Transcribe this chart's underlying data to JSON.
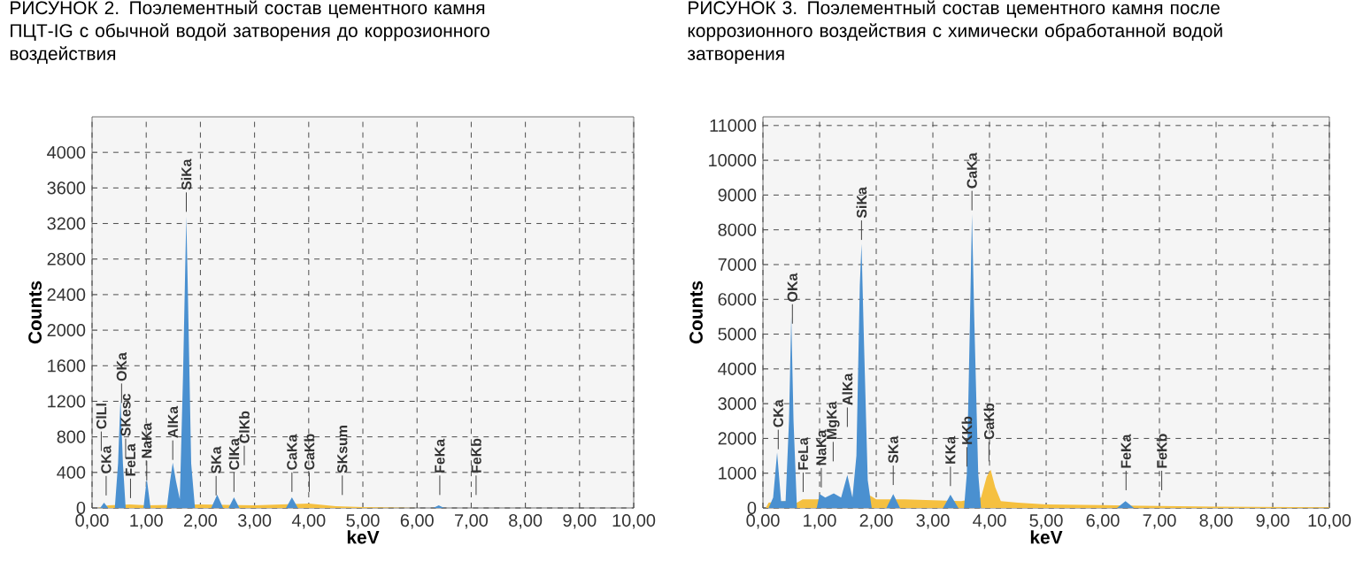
{
  "chart_data": [
    {
      "type": "area",
      "title": "РИСУНОК 2. Поэлементный состав цементного камня ПЦТ-IG с обычной водой затворения до коррозионного воздействия",
      "xlabel": "keV",
      "ylabel": "Counts",
      "xlim": [
        0,
        10
      ],
      "ylim": [
        0,
        4400
      ],
      "xticks": [
        {
          "value": 0,
          "label": "0,00"
        },
        {
          "value": 1,
          "label": "1,00"
        },
        {
          "value": 2,
          "label": "2,00"
        },
        {
          "value": 3,
          "label": "3,00"
        },
        {
          "value": 4,
          "label": "4,00"
        },
        {
          "value": 5,
          "label": "5,00"
        },
        {
          "value": 6,
          "label": "6,00"
        },
        {
          "value": 7,
          "label": "7,00"
        },
        {
          "value": 8,
          "label": "8,00"
        },
        {
          "value": 9,
          "label": "9,00"
        },
        {
          "value": 10,
          "label": "10,00"
        }
      ],
      "yticks": [
        0,
        400,
        800,
        1200,
        1600,
        2000,
        2400,
        2800,
        3200,
        3600,
        4000
      ],
      "grid": true,
      "series": [
        {
          "color": "#f5c040",
          "x": [
            0.1,
            0.3,
            0.7,
            1.0,
            2.0,
            3.0,
            4.0,
            4.5,
            5.0,
            6.0,
            10.0
          ],
          "values": [
            0,
            30,
            40,
            30,
            40,
            30,
            50,
            20,
            10,
            0,
            0
          ]
        },
        {
          "color": "#4a90d0",
          "x": [
            0.0,
            0.15,
            0.22,
            0.3,
            0.42,
            0.48,
            0.525,
            0.57,
            0.62,
            0.95,
            1.01,
            1.08,
            1.38,
            1.44,
            1.49,
            1.55,
            1.62,
            1.68,
            1.72,
            1.74,
            1.77,
            1.83,
            1.9,
            2.2,
            2.31,
            2.42,
            2.52,
            2.62,
            2.72,
            3.58,
            3.69,
            3.8,
            6.3,
            6.4,
            6.5,
            10.0
          ],
          "values": [
            0,
            0,
            60,
            0,
            0,
            500,
            1230,
            500,
            0,
            0,
            330,
            0,
            0,
            300,
            510,
            300,
            100,
            1500,
            2700,
            3280,
            2400,
            500,
            0,
            0,
            150,
            0,
            0,
            120,
            0,
            0,
            120,
            0,
            0,
            30,
            0,
            0
          ]
        }
      ],
      "annotations": [
        "ClLl",
        "CKa",
        "OKa",
        "SKesc",
        "FeLa",
        "NaKa",
        "AlKa",
        "SiKa",
        "SKa",
        "ClKa",
        "ClKb",
        "CaKa",
        "CaKb",
        "SKsum",
        "FeKa",
        "FeKb"
      ]
    },
    {
      "type": "area",
      "title": "РИСУНОК 3. Поэлементный состав цементного камня после коррозионного воздействия с химически обработанной водой затворения",
      "xlabel": "keV",
      "ylabel": "Counts",
      "xlim": [
        0,
        10
      ],
      "ylim": [
        0,
        11250
      ],
      "xticks": [
        {
          "value": 0,
          "label": "0,00"
        },
        {
          "value": 1,
          "label": "1,00"
        },
        {
          "value": 2,
          "label": "2,00"
        },
        {
          "value": 3,
          "label": "3,00"
        },
        {
          "value": 4,
          "label": "4,00"
        },
        {
          "value": 5,
          "label": "5,00"
        },
        {
          "value": 6,
          "label": "6,00"
        },
        {
          "value": 7,
          "label": "7,00"
        },
        {
          "value": 8,
          "label": "8,00"
        },
        {
          "value": 9,
          "label": "9,00"
        },
        {
          "value": 10,
          "label": "10,00"
        }
      ],
      "yticks": [
        0,
        1000,
        2000,
        3000,
        4000,
        5000,
        6000,
        7000,
        8000,
        9000,
        10000,
        11000
      ],
      "grid": true,
      "series": [
        {
          "color": "#f5c040",
          "x": [
            0.05,
            0.1,
            0.4,
            0.6,
            0.7,
            0.95,
            1.9,
            2.0,
            2.5,
            3.5,
            3.85,
            3.95,
            4.02,
            4.1,
            4.2,
            4.5,
            5.0,
            6.0,
            7.0,
            8.0,
            9.0,
            10.0
          ],
          "values": [
            0,
            150,
            200,
            150,
            250,
            250,
            350,
            250,
            250,
            200,
            300,
            900,
            1100,
            600,
            200,
            150,
            100,
            80,
            60,
            40,
            30,
            20
          ]
        },
        {
          "color": "#4a90d0",
          "x": [
            0.1,
            0.18,
            0.25,
            0.32,
            0.4,
            0.46,
            0.5,
            0.54,
            0.6,
            0.95,
            1.0,
            1.1,
            1.25,
            1.38,
            1.49,
            1.58,
            1.65,
            1.71,
            1.74,
            1.78,
            1.85,
            1.92,
            2.18,
            2.3,
            2.42,
            3.18,
            3.31,
            3.45,
            3.55,
            3.6,
            3.65,
            3.69,
            3.73,
            3.8,
            3.85,
            6.25,
            6.4,
            6.55,
            10.0
          ],
          "values": [
            0,
            300,
            1600,
            200,
            200,
            2500,
            5500,
            2500,
            0,
            0,
            400,
            300,
            420,
            300,
            950,
            300,
            1500,
            6400,
            7600,
            5000,
            800,
            0,
            0,
            400,
            0,
            0,
            380,
            0,
            0,
            1000,
            5000,
            8450,
            5500,
            1000,
            0,
            0,
            200,
            0,
            0
          ]
        }
      ],
      "annotations": [
        "CKa",
        "OKa",
        "FeLa",
        "NaKa",
        "MgKa",
        "AlKa",
        "SiKa",
        "SKa",
        "KKa",
        "KKb",
        "CaKa",
        "CaKb",
        "FeKa",
        "FeKb"
      ]
    }
  ]
}
